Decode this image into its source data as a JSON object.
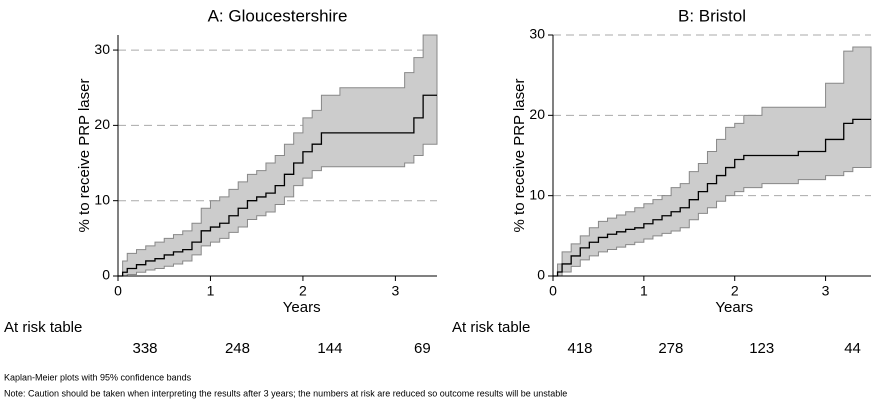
{
  "chart_data": [
    {
      "type": "km",
      "title": "A: Gloucestershire",
      "xlabel": "Years",
      "ylabel": "% to receive PRP laser",
      "xlim": [
        0,
        3.45
      ],
      "xticks": [
        0,
        1,
        2,
        3
      ],
      "ylim": [
        0,
        32
      ],
      "yticks": [
        0,
        10,
        20,
        30
      ],
      "grid": true,
      "color": "#000000",
      "band_color": "#cccccc",
      "x": [
        0,
        0.05,
        0.1,
        0.2,
        0.3,
        0.4,
        0.5,
        0.6,
        0.7,
        0.8,
        0.9,
        1.0,
        1.1,
        1.2,
        1.3,
        1.4,
        1.5,
        1.6,
        1.7,
        1.8,
        1.9,
        2.0,
        2.1,
        2.2,
        2.4,
        2.6,
        2.8,
        3.0,
        3.1,
        3.2,
        3.3,
        3.45
      ],
      "values": [
        0,
        0.5,
        1,
        1.5,
        2,
        2.3,
        2.8,
        3.2,
        3.5,
        4.5,
        6,
        6.5,
        7,
        8,
        9,
        10,
        10.5,
        11,
        12,
        13.5,
        15,
        16.5,
        17.5,
        19,
        19,
        19,
        19,
        19,
        19,
        21,
        24,
        24
      ],
      "lower": [
        0,
        0,
        0.2,
        0.5,
        0.8,
        1.0,
        1.3,
        1.6,
        2,
        2.8,
        4,
        4.5,
        5,
        5.8,
        6.5,
        7.5,
        8,
        8.5,
        9.5,
        10.5,
        12,
        13,
        14,
        14.5,
        14.5,
        14.5,
        14.5,
        14.5,
        15,
        16,
        17.5,
        17.5
      ],
      "upper": [
        0,
        2,
        3,
        3.5,
        4,
        4.5,
        5,
        5.5,
        6,
        7,
        9,
        10,
        10.5,
        11.5,
        12.5,
        13.5,
        14,
        15,
        16,
        17.5,
        19,
        21,
        22,
        24,
        25,
        25,
        25,
        25,
        27,
        29,
        32,
        32
      ],
      "at_risk": {
        "label": "At risk table",
        "values": [
          338,
          248,
          144,
          69
        ]
      }
    },
    {
      "type": "km",
      "title": "B: Bristol",
      "xlabel": "Years",
      "ylabel": "% to receive PRP laser",
      "xlim": [
        0,
        3.5
      ],
      "xticks": [
        0,
        1,
        2,
        3
      ],
      "ylim": [
        0,
        30
      ],
      "yticks": [
        0,
        10,
        20,
        30
      ],
      "grid": true,
      "color": "#000000",
      "band_color": "#cccccc",
      "x": [
        0,
        0.05,
        0.1,
        0.2,
        0.3,
        0.4,
        0.5,
        0.6,
        0.7,
        0.8,
        0.9,
        1.0,
        1.1,
        1.2,
        1.3,
        1.4,
        1.5,
        1.6,
        1.7,
        1.8,
        1.9,
        2.0,
        2.1,
        2.3,
        2.5,
        2.7,
        3.0,
        3.2,
        3.3,
        3.5
      ],
      "values": [
        0,
        0.5,
        1.5,
        2.5,
        3.5,
        4.2,
        4.8,
        5.2,
        5.5,
        5.8,
        6,
        6.5,
        7,
        7.5,
        8,
        8.5,
        9.5,
        10.5,
        11.5,
        12.5,
        13.5,
        14.5,
        15,
        15,
        15,
        15.5,
        17,
        19,
        19.5,
        19.5
      ],
      "lower": [
        0,
        0,
        0.5,
        1.2,
        2,
        2.5,
        3,
        3.3,
        3.6,
        3.9,
        4.2,
        4.6,
        5,
        5.3,
        5.6,
        6,
        7,
        7.8,
        8.5,
        9.3,
        10,
        10.5,
        11,
        11.5,
        11.5,
        12,
        12.5,
        13,
        13.5,
        13.5
      ],
      "upper": [
        0,
        1.5,
        3,
        4,
        5,
        6,
        6.8,
        7.2,
        7.6,
        8,
        8.5,
        9,
        9.5,
        10,
        11,
        11.5,
        13,
        14,
        15.5,
        17,
        18.5,
        19,
        20,
        21,
        21,
        21,
        24,
        28,
        28.5,
        28.5
      ],
      "at_risk": {
        "label": "At risk table",
        "values": [
          418,
          278,
          123,
          44
        ]
      }
    }
  ],
  "notes": [
    "Kaplan-Meier plots with 95% confidence bands",
    "Note: Caution should be taken when interpreting the results after 3 years; the numbers at risk are reduced so outcome results will be unstable"
  ]
}
